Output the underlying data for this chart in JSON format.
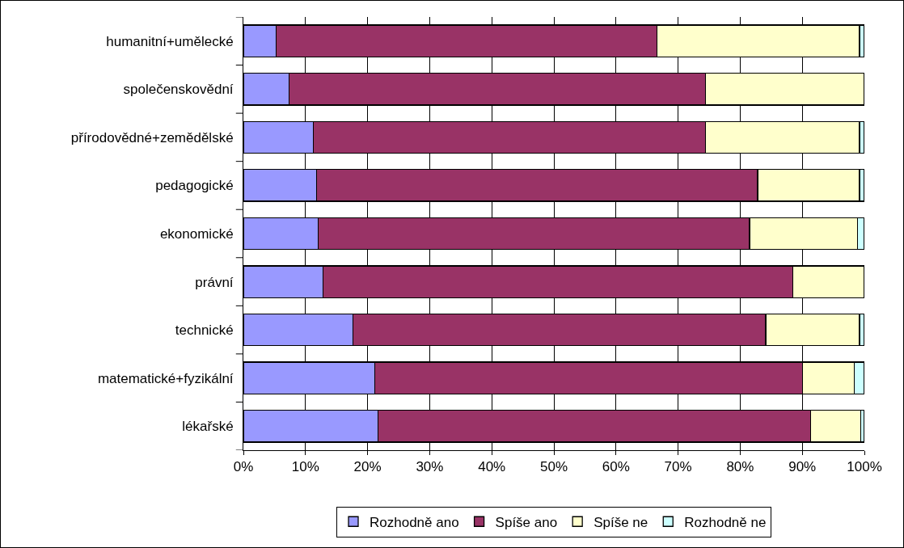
{
  "chart_data": {
    "type": "bar",
    "orientation": "horizontal",
    "stacked": true,
    "categories": [
      "humanitní+umělecké",
      "společenskovědní",
      "přírodovědné+zemědělské",
      "pedagogické",
      "ekonomické",
      "právní",
      "technické",
      "matematické+fyzikální",
      "lékařské"
    ],
    "series": [
      {
        "name": "Rozhodně ano",
        "color": "#9999ff",
        "values": [
          5.3,
          7.4,
          11.3,
          11.8,
          12.0,
          12.8,
          17.6,
          21.2,
          21.7
        ]
      },
      {
        "name": "Spíše ano",
        "color": "#993366",
        "values": [
          61.3,
          67.0,
          63.1,
          71.0,
          69.5,
          75.7,
          66.5,
          68.8,
          69.6
        ]
      },
      {
        "name": "Spíše ne",
        "color": "#ffffcc",
        "values": [
          32.6,
          25.6,
          24.8,
          16.4,
          17.4,
          11.5,
          15.1,
          8.4,
          8.1
        ]
      },
      {
        "name": "Rozhodně ne",
        "color": "#ccffff",
        "values": [
          0.8,
          0,
          0.8,
          0.8,
          1.1,
          0,
          0.8,
          1.6,
          0.6
        ]
      }
    ],
    "xlim": [
      0,
      100
    ],
    "xticks": [
      {
        "value": 0,
        "label": "0%"
      },
      {
        "value": 10,
        "label": "10%"
      },
      {
        "value": 20,
        "label": "20%"
      },
      {
        "value": 30,
        "label": "30%"
      },
      {
        "value": 40,
        "label": "40%"
      },
      {
        "value": 50,
        "label": "50%"
      },
      {
        "value": 60,
        "label": "60%"
      },
      {
        "value": 70,
        "label": "70%"
      },
      {
        "value": 80,
        "label": "80%"
      },
      {
        "value": 90,
        "label": "90%"
      },
      {
        "value": 100,
        "label": "100%"
      }
    ],
    "grid": "x",
    "legend": "bottom"
  }
}
